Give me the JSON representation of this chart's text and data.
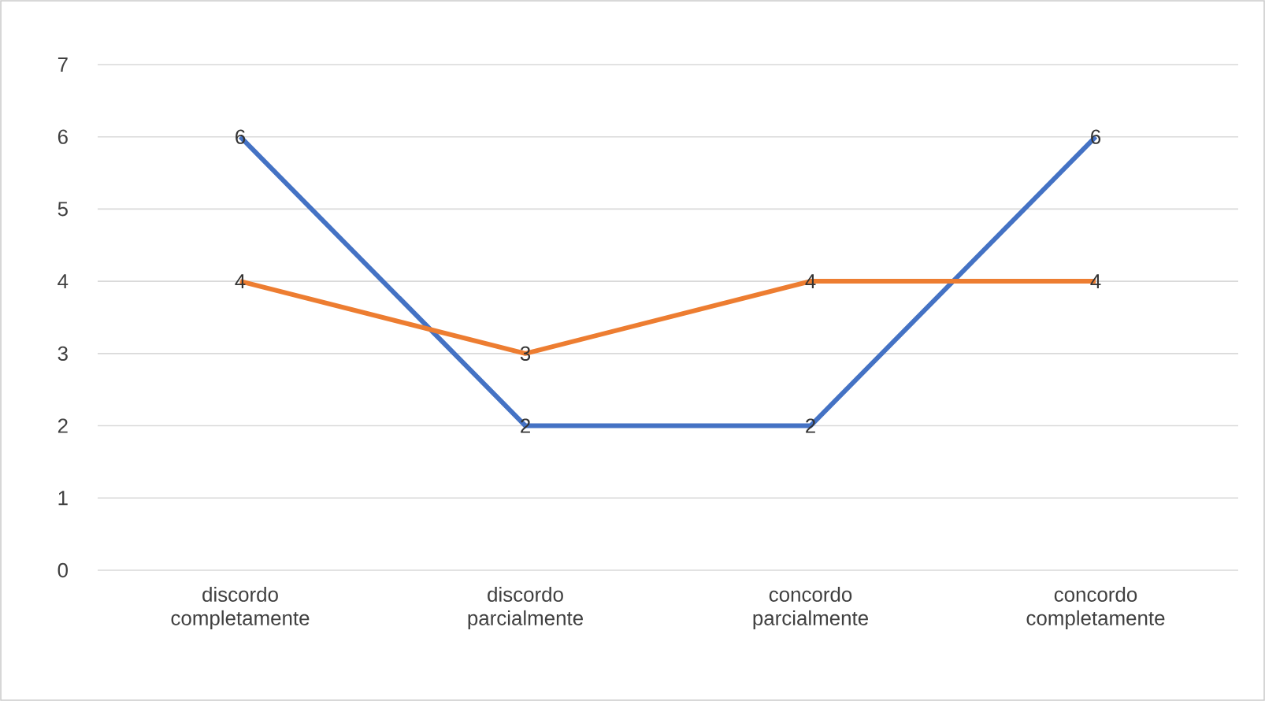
{
  "chart_data": {
    "type": "line",
    "categories": [
      "discordo completamente",
      "discordo parcialmente",
      "concordo parcialmente",
      "concordo completamente"
    ],
    "series": [
      {
        "color": "#4472c4",
        "values": [
          6,
          2,
          2,
          6
        ]
      },
      {
        "color": "#ed7d31",
        "values": [
          4,
          3,
          4,
          4
        ]
      }
    ],
    "ylim": [
      0,
      7
    ],
    "yticks": [
      0,
      1,
      2,
      3,
      4,
      5,
      6,
      7
    ],
    "grid": "y",
    "data_labels": true,
    "marker": "none",
    "line_style": "solid"
  }
}
